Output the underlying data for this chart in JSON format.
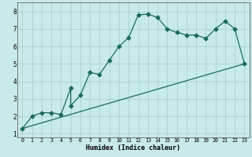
{
  "xlabel": "Humidex (Indice chaleur)",
  "bg_color": "#c8eae8",
  "grid_color": "#a8d4d0",
  "line_color": "#1a6b5a",
  "xlim": [
    -0.5,
    23.5
  ],
  "ylim": [
    0.8,
    8.5
  ],
  "xticks": [
    0,
    1,
    2,
    3,
    4,
    5,
    6,
    7,
    8,
    9,
    10,
    11,
    12,
    13,
    14,
    15,
    16,
    17,
    18,
    19,
    20,
    21,
    22,
    23
  ],
  "yticks": [
    1,
    2,
    3,
    4,
    5,
    6,
    7,
    8
  ],
  "curve1_x": [
    0,
    1,
    2,
    3,
    4,
    5,
    5,
    6,
    7,
    8,
    9,
    10,
    11,
    12,
    13,
    14,
    15,
    16,
    17,
    18,
    19,
    20,
    21,
    22,
    23
  ],
  "curve1_y": [
    1.3,
    2.0,
    2.2,
    2.2,
    2.1,
    3.6,
    2.6,
    3.2,
    4.5,
    4.4,
    5.2,
    6.0,
    6.5,
    7.8,
    7.85,
    7.65,
    7.0,
    6.8,
    6.65,
    6.65,
    6.45,
    7.0,
    7.45,
    7.0,
    5.0
  ],
  "curve2_x": [
    0,
    23
  ],
  "curve2_y": [
    1.3,
    5.0
  ],
  "marker": "D",
  "marker_size": 2.5,
  "xlabel_fontsize": 6,
  "xtick_fontsize": 4.8,
  "ytick_fontsize": 5.5,
  "linewidth": 0.9
}
